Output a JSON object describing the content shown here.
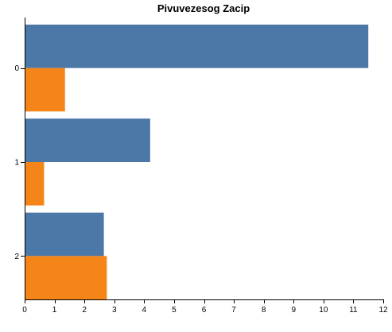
{
  "chart_data": {
    "type": "bar",
    "orientation": "horizontal",
    "title": "Pivuvezesog Zacip",
    "xlabel": "",
    "ylabel": "",
    "categories": [
      "0",
      "1",
      "2"
    ],
    "series": [
      {
        "values": [
          11.5,
          4.2,
          2.65
        ],
        "color": "#4c78a8"
      },
      {
        "values": [
          1.35,
          0.65,
          2.75
        ],
        "color": "#f58518"
      }
    ],
    "xlim": [
      0,
      12
    ],
    "xticks": [
      "0",
      "1",
      "2",
      "3",
      "4",
      "5",
      "6",
      "7",
      "8",
      "9",
      "10",
      "11",
      "12"
    ],
    "grid": false,
    "legend": "none"
  }
}
